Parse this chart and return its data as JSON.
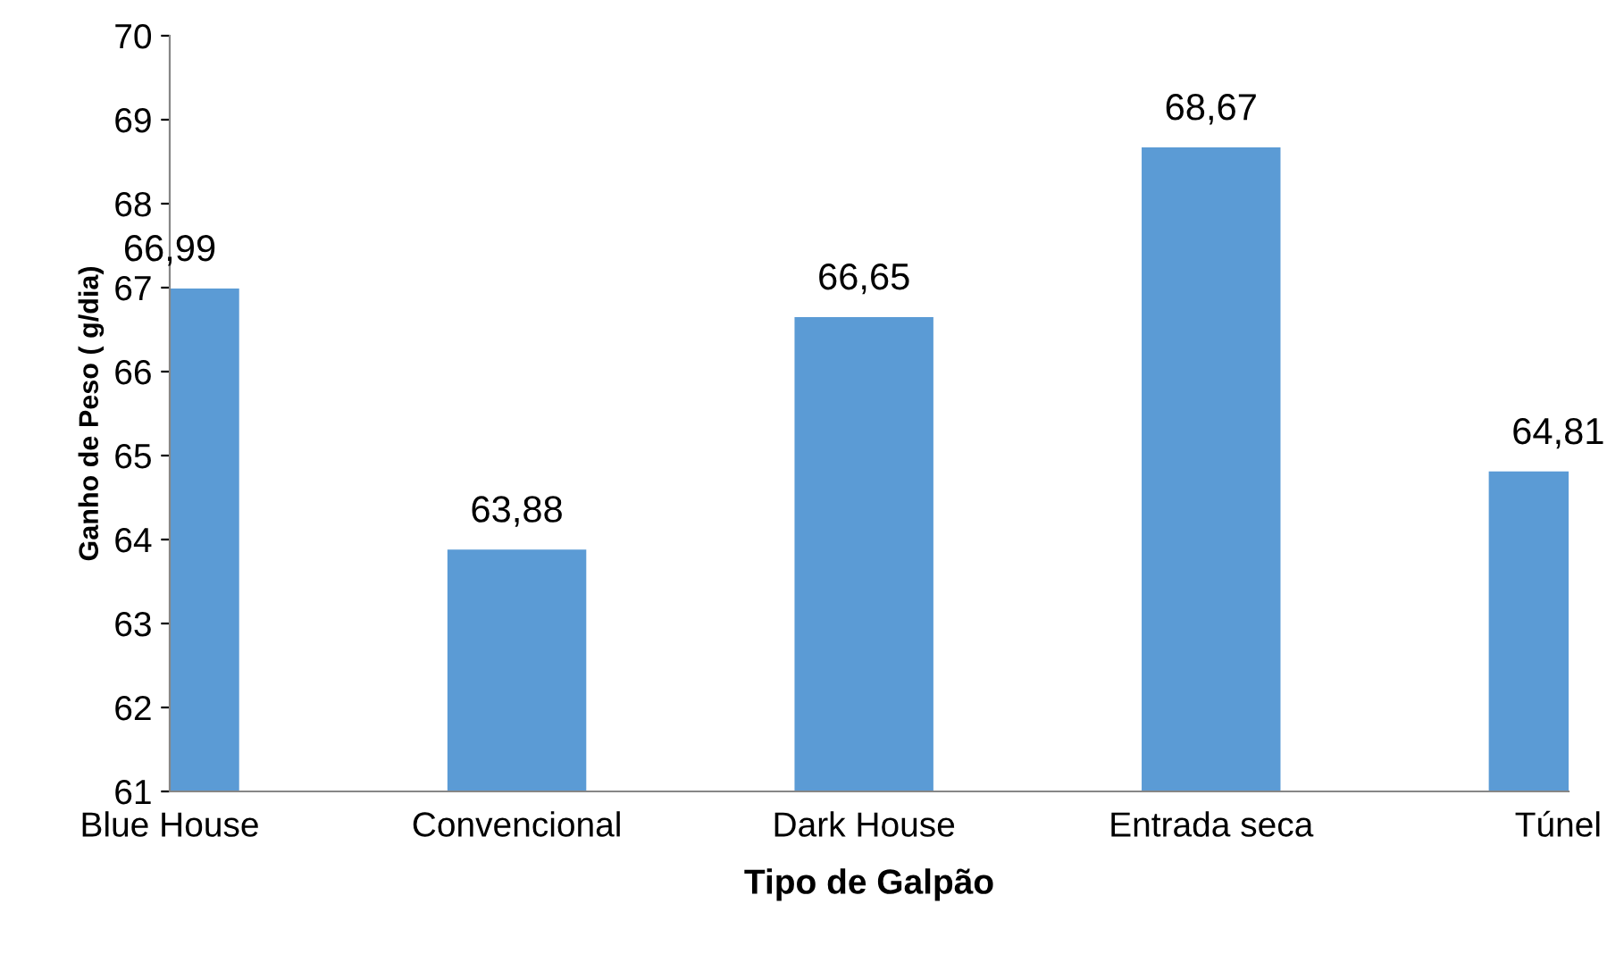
{
  "chart_data": {
    "type": "bar",
    "xlabel": "Tipo de Galpão",
    "ylabel": "Ganho de Peso ( g/dia)",
    "categories": [
      "Blue House",
      "Convencional",
      "Dark House",
      "Entrada seca",
      "Túnel"
    ],
    "values": [
      66.99,
      63.88,
      66.65,
      68.67,
      64.81
    ],
    "value_labels": [
      "66,99",
      "63,88",
      "66,65",
      "68,67",
      "64,81"
    ],
    "color": "#5b9bd5",
    "ylim": [
      61,
      70
    ],
    "yticks": [
      61,
      62,
      63,
      64,
      65,
      66,
      67,
      68,
      69,
      70
    ],
    "grid": false,
    "legend": false
  }
}
